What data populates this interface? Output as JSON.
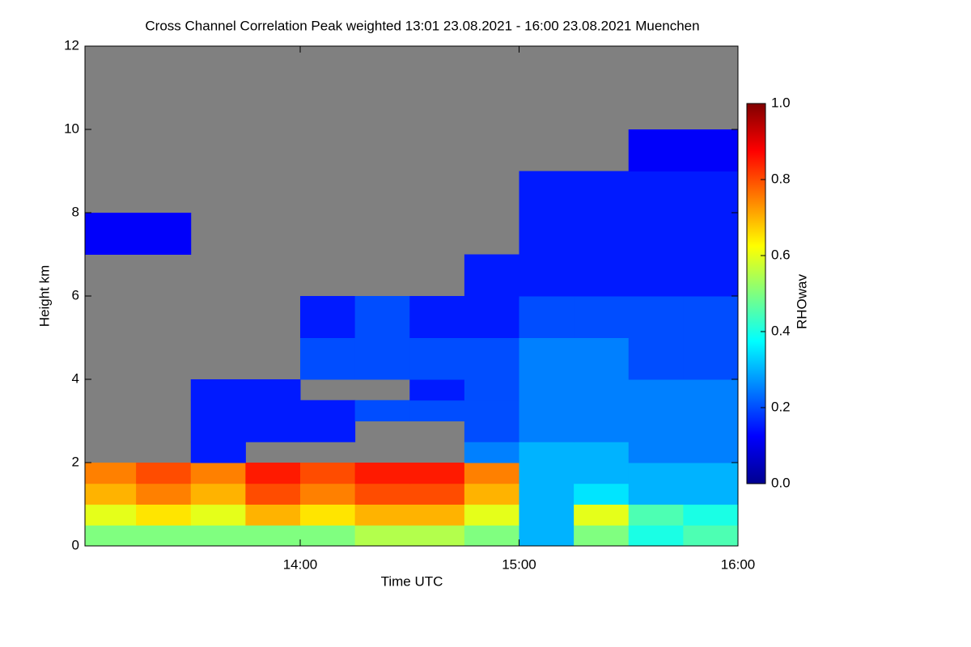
{
  "chart_data": {
    "type": "heatmap",
    "title": "Cross Channel Correlation Peak weighted   13:01 23.08.2021 - 16:00 23.08.2021 Muenchen",
    "xlabel": "Time UTC",
    "ylabel": "Height km",
    "colorbar_label": "RHOwav",
    "colormap": "jet",
    "xlim": [
      "13:01",
      "16:00"
    ],
    "xticks": [
      "14:00",
      "15:00",
      "16:00"
    ],
    "ylim": [
      0,
      12
    ],
    "yticks": [
      0,
      2,
      4,
      6,
      8,
      10,
      12
    ],
    "zlim": [
      0,
      1
    ],
    "zticks": [
      {
        "value": 0,
        "label": "0.0"
      },
      {
        "value": 0.2,
        "label": "0.2"
      },
      {
        "value": 0.4,
        "label": "0.4"
      },
      {
        "value": 0.6,
        "label": "0.6"
      },
      {
        "value": 0.8,
        "label": "0.8"
      },
      {
        "value": 1,
        "label": "1.0"
      }
    ],
    "x_bins": [
      "13:01",
      "13:15",
      "13:30",
      "13:45",
      "14:00",
      "14:15",
      "14:30",
      "14:45",
      "15:00",
      "15:15",
      "15:30",
      "15:45",
      "16:00"
    ],
    "y_bins": [
      0,
      0.5,
      1,
      1.5,
      2,
      2.5,
      3,
      3.5,
      4,
      5,
      6,
      7,
      8,
      9,
      10
    ],
    "values": [
      [
        0.5,
        0.5,
        0.5,
        0.5,
        0.5,
        0.55,
        0.55,
        0.5,
        0.3,
        0.5,
        0.4,
        0.45
      ],
      [
        0.6,
        0.65,
        0.6,
        0.7,
        0.65,
        0.7,
        0.7,
        0.6,
        0.3,
        0.6,
        0.45,
        0.4
      ],
      [
        0.7,
        0.75,
        0.7,
        0.8,
        0.75,
        0.8,
        0.8,
        0.7,
        0.3,
        0.35,
        0.3,
        0.3
      ],
      [
        0.75,
        0.8,
        0.75,
        0.85,
        0.8,
        0.85,
        0.85,
        0.75,
        0.3,
        0.3,
        0.3,
        0.3
      ],
      [
        null,
        null,
        0.15,
        null,
        null,
        null,
        null,
        0.25,
        0.3,
        0.3,
        0.25,
        0.25
      ],
      [
        null,
        null,
        0.15,
        0.15,
        0.15,
        null,
        null,
        0.2,
        0.25,
        0.25,
        0.25,
        0.25
      ],
      [
        null,
        null,
        0.15,
        0.15,
        0.15,
        0.2,
        0.2,
        0.2,
        0.25,
        0.25,
        0.25,
        0.25
      ],
      [
        null,
        null,
        0.15,
        0.15,
        null,
        null,
        0.15,
        0.2,
        0.25,
        0.25,
        0.25,
        0.25
      ],
      [
        null,
        null,
        null,
        null,
        0.2,
        0.2,
        0.2,
        0.2,
        0.25,
        0.25,
        0.2,
        0.2
      ],
      [
        null,
        null,
        null,
        null,
        0.15,
        0.2,
        0.15,
        0.15,
        0.2,
        0.2,
        0.2,
        0.2
      ],
      [
        null,
        null,
        null,
        null,
        null,
        null,
        null,
        0.15,
        0.15,
        0.15,
        0.15,
        0.15
      ],
      [
        0.12,
        0.12,
        null,
        null,
        null,
        null,
        null,
        null,
        0.15,
        0.15,
        0.15,
        0.15
      ],
      [
        null,
        null,
        null,
        null,
        null,
        null,
        null,
        null,
        0.15,
        0.15,
        0.15,
        0.15
      ],
      [
        null,
        null,
        null,
        null,
        null,
        null,
        null,
        null,
        null,
        null,
        0.12,
        0.12
      ]
    ]
  }
}
